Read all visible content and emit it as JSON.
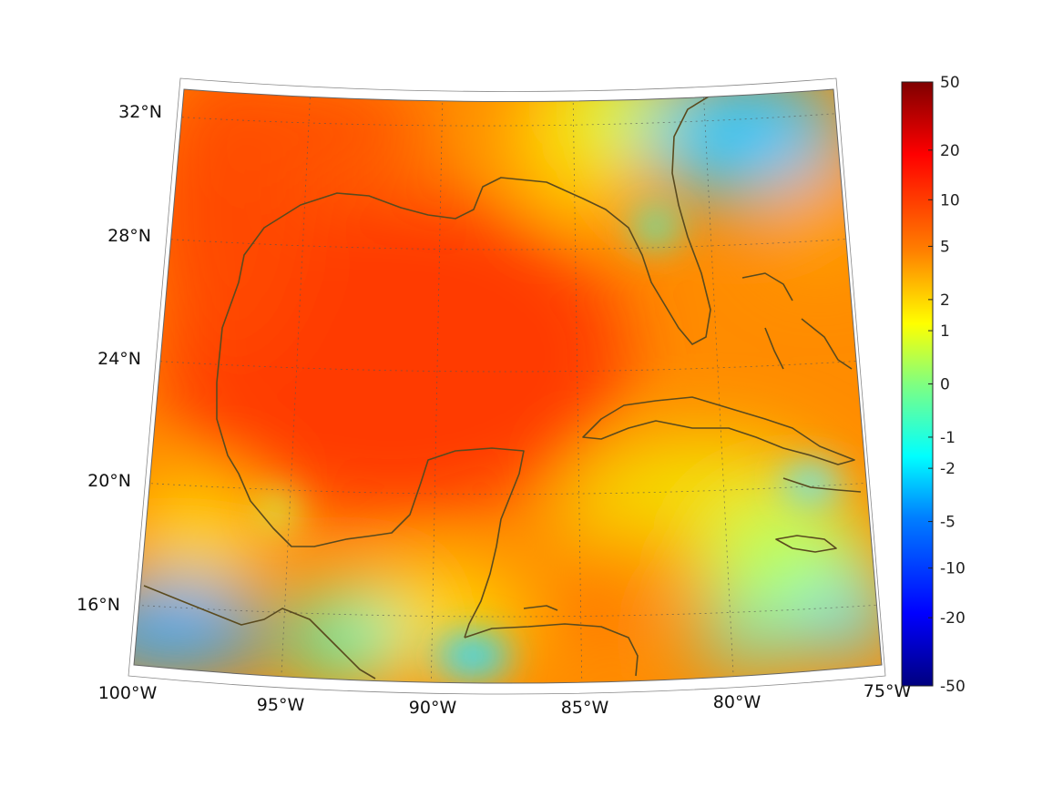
{
  "map": {
    "projection": "lambert-conformal",
    "lon_range": [
      -100,
      -75
    ],
    "lat_range": [
      14,
      33
    ],
    "lon_ticks": [
      {
        "value": -100,
        "label": "100°W"
      },
      {
        "value": -95,
        "label": "95°W"
      },
      {
        "value": -90,
        "label": "90°W"
      },
      {
        "value": -85,
        "label": "85°W"
      },
      {
        "value": -80,
        "label": "80°W"
      },
      {
        "value": -75,
        "label": "75°W"
      }
    ],
    "lat_ticks": [
      {
        "value": 16,
        "label": "16°N"
      },
      {
        "value": 20,
        "label": "20°N"
      },
      {
        "value": 24,
        "label": "24°N"
      },
      {
        "value": 28,
        "label": "28°N"
      },
      {
        "value": 32,
        "label": "32°N"
      }
    ],
    "grid": true,
    "grid_style": "dotted",
    "coastline_color": "#5a4a1e",
    "field_colormap": "jet",
    "regions": [
      {
        "name_id": "gulf-core",
        "level": 6.5
      },
      {
        "name_id": "texas-coast",
        "level": 8
      },
      {
        "name_id": "caribbean-south",
        "level": 2
      },
      {
        "name_id": "pacific-mexico",
        "level": -4
      },
      {
        "name_id": "atlantic-northeast",
        "level": -3
      },
      {
        "name_id": "florida-east",
        "level": 1
      }
    ]
  },
  "colorbar": {
    "position": "right",
    "scale": "symmetric-log",
    "min": -50,
    "max": 50,
    "ticks": [
      {
        "value": 50,
        "label": "50"
      },
      {
        "value": 20,
        "label": "20"
      },
      {
        "value": 10,
        "label": "10"
      },
      {
        "value": 5,
        "label": "5"
      },
      {
        "value": 2,
        "label": "2"
      },
      {
        "value": 1,
        "label": "1"
      },
      {
        "value": 0,
        "label": "0"
      },
      {
        "value": -1,
        "label": "-1"
      },
      {
        "value": -2,
        "label": "-2"
      },
      {
        "value": -5,
        "label": "-5"
      },
      {
        "value": -10,
        "label": "-10"
      },
      {
        "value": -20,
        "label": "-20"
      },
      {
        "value": -50,
        "label": "-50"
      }
    ],
    "stops": [
      "#00007f",
      "#0000ff",
      "#0080ff",
      "#00ffff",
      "#80ff80",
      "#ffff00",
      "#ff8000",
      "#ff0000",
      "#7f0000"
    ]
  }
}
